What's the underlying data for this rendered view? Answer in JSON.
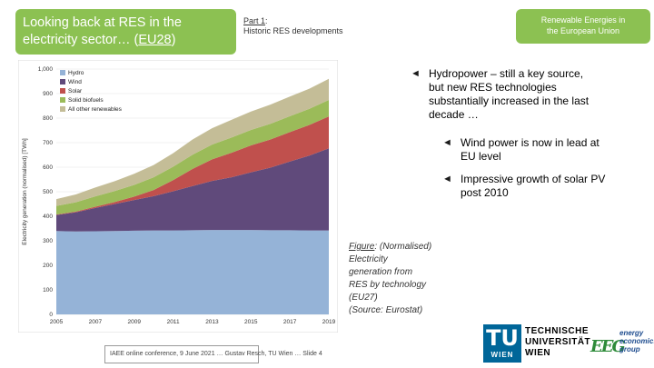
{
  "header": {
    "title_line1_part1": "Looking back",
    "title_line1_part2": " at RES in the",
    "title_line2_part1": "electricity",
    "title_line2_part2": " sector… (",
    "title_line2_part3": "EU28",
    "title_line2_part4": ")",
    "part_label": "Part 1",
    "part_colon": ":",
    "part_subtitle": "Historic RES developments",
    "topic_line1": "Renewable Energies in",
    "topic_line2": "the European Union"
  },
  "bullets": {
    "b1_line1": "Hydropower – still a key source,",
    "b1_line2": "but new RES technologies",
    "b1_line3": "substantially increased in the last",
    "b1_line4": "decade …",
    "b2_line1": "Wind power is now in lead at",
    "b2_line2": "EU level",
    "b3_line1": "Impressive growth of solar PV",
    "b3_line2": "post 2010",
    "arrow_glyph": "◄"
  },
  "caption": {
    "label": "Figure",
    "colon": ":",
    "text1": " (Normalised)",
    "text2": "Electricity",
    "text3": "generation from",
    "text4": "RES by technology",
    "text5": "(EU27)",
    "text6": "(Source: Eurostat)"
  },
  "footer": {
    "text": "IAEE online conference, 9 June 2021 … Gustav Resch, TU Wien … Slide 4"
  },
  "logos": {
    "tu_big": "TU",
    "tu_small": "WIEN",
    "tu_line1": "TECHNISCHE",
    "tu_line2": "UNIVERSITÄT",
    "tu_line3": "WIEN",
    "eeg_letters": "EEG",
    "eeg_line1": "energy",
    "eeg_line2": "economics",
    "eeg_line3": "group"
  },
  "colors": {
    "accent_green": "#8cc152",
    "hydro": "#95b3d7",
    "wind": "#604a7b",
    "solar": "#c0504d",
    "solid_biofuels": "#9bbb59",
    "other": "#c4bd97"
  },
  "chart_data": {
    "type": "area",
    "stacked": true,
    "title": "",
    "xlabel": "",
    "ylabel": "Electricity generation (normalised) [TWh]",
    "x": [
      2005,
      2006,
      2007,
      2008,
      2009,
      2010,
      2011,
      2012,
      2013,
      2014,
      2015,
      2016,
      2017,
      2018,
      2019
    ],
    "x_ticks": [
      "2005",
      "2007",
      "2009",
      "2011",
      "2013",
      "2015",
      "2017",
      "2019"
    ],
    "y_ticks": [
      "0",
      "100",
      "200",
      "300",
      "400",
      "500",
      "600",
      "700",
      "800",
      "900",
      "1,000"
    ],
    "ylim": [
      0,
      1000
    ],
    "grid": true,
    "legend_position": "top-left",
    "series": [
      {
        "name": "Hydro",
        "color": "#95b3d7",
        "values": [
          340,
          338,
          339,
          340,
          341,
          342,
          342,
          343,
          344,
          344,
          344,
          343,
          343,
          342,
          342
        ]
      },
      {
        "name": "Wind",
        "color": "#604a7b",
        "values": [
          65,
          78,
          95,
          110,
          125,
          140,
          160,
          180,
          200,
          215,
          235,
          255,
          280,
          305,
          335
        ]
      },
      {
        "name": "Solar",
        "color": "#c0504d",
        "values": [
          2,
          3,
          5,
          8,
          14,
          25,
          45,
          70,
          88,
          100,
          110,
          115,
          120,
          125,
          130
        ]
      },
      {
        "name": "Solid biofuels",
        "color": "#9bbb59",
        "values": [
          35,
          38,
          42,
          45,
          48,
          52,
          55,
          58,
          60,
          62,
          63,
          64,
          65,
          66,
          67
        ]
      },
      {
        "name": "All other renewables",
        "color": "#c4bd97",
        "values": [
          28,
          32,
          36,
          40,
          45,
          50,
          55,
          62,
          67,
          72,
          75,
          78,
          80,
          82,
          86
        ]
      }
    ]
  }
}
